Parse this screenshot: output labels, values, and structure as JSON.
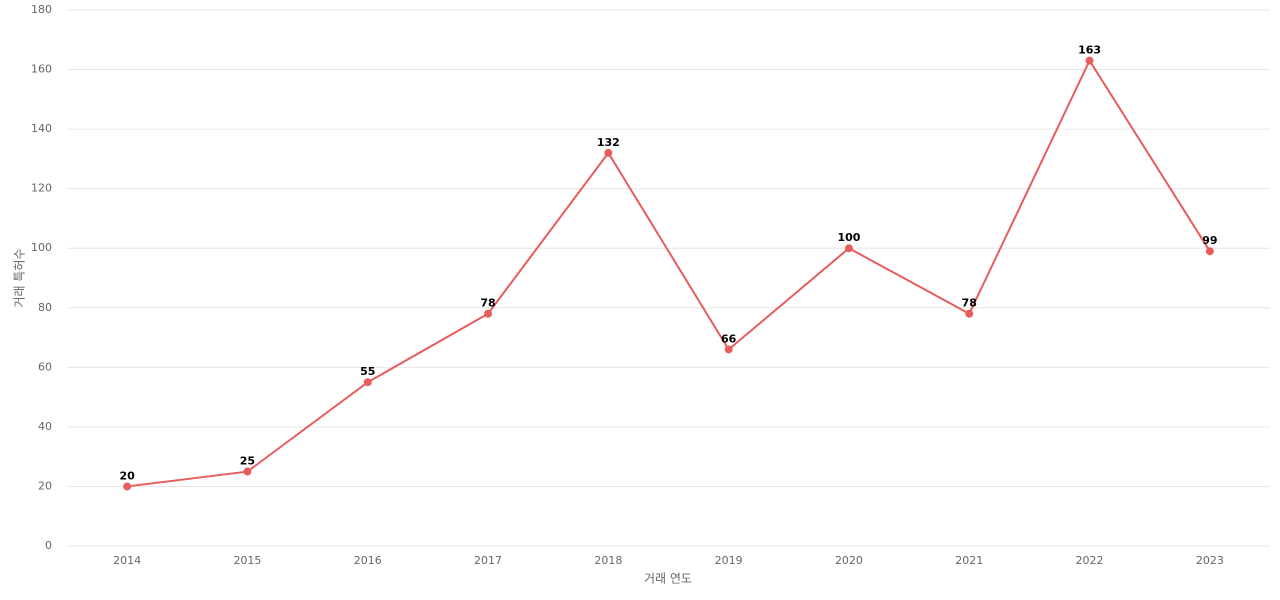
{
  "chart_data": {
    "type": "line",
    "xlabel": "거래 연도",
    "ylabel": "거래 특허수",
    "categories": [
      "2014",
      "2015",
      "2016",
      "2017",
      "2018",
      "2019",
      "2020",
      "2021",
      "2022",
      "2023"
    ],
    "series": [
      {
        "name": "거래 특허수",
        "color": "#e85c5c",
        "values": [
          20,
          25,
          55,
          78,
          132,
          66,
          100,
          78,
          163,
          99
        ]
      }
    ],
    "ylim": [
      0,
      180
    ],
    "yticks": [
      0,
      20,
      40,
      60,
      80,
      100,
      120,
      140,
      160,
      180
    ],
    "grid": true,
    "legend": false
  }
}
